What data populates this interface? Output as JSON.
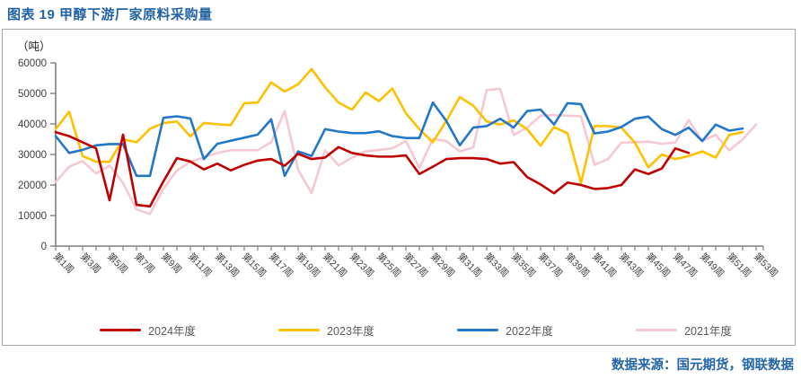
{
  "header": {
    "title": "图表 19 甲醇下游厂家原料采购量"
  },
  "footer": {
    "source": "数据来源：国元期货，钢联数据"
  },
  "colors": {
    "title_blue": "#2262A6",
    "source_blue": "#2464A8",
    "frame_border": "#A6A6A6",
    "axis_gray": "#808080",
    "tick_text": "#3F3F3F",
    "legend_text": "#595959"
  },
  "chart_data": {
    "type": "line",
    "title": "图表 19 甲醇下游厂家原料采购量",
    "unit_label": "（吨）",
    "xlabel": "",
    "ylabel": "吨",
    "weeks_total": 53,
    "y_axis": {
      "min": 0,
      "max": 60000,
      "step": 10000,
      "ticks": [
        0,
        10000,
        20000,
        30000,
        40000,
        50000,
        60000
      ]
    },
    "grid": false,
    "legend_position": "bottom",
    "x_tick_labels": [
      "第1周",
      "第3周",
      "第5周",
      "第7周",
      "第9周",
      "第11周",
      "第13周",
      "第15周",
      "第17周",
      "第19周",
      "第21周",
      "第23周",
      "第25周",
      "第27周",
      "第29周",
      "第31周",
      "第33周",
      "第35周",
      "第37周",
      "第39周",
      "第41周",
      "第43周",
      "第45周",
      "第47周",
      "第49周",
      "第51周",
      "第53周"
    ],
    "series": [
      {
        "name": "2024年度",
        "color": "#C00000",
        "values": [
          37300,
          36000,
          34000,
          32000,
          15000,
          36500,
          13500,
          13000,
          21200,
          28800,
          27700,
          25100,
          27000,
          24800,
          26600,
          28000,
          28500,
          26300,
          30200,
          28500,
          29000,
          32400,
          30500,
          29700,
          29300,
          29300,
          29700,
          23600,
          26000,
          28500,
          28800,
          28800,
          28500,
          27000,
          27500,
          22600,
          20200,
          17300,
          20800,
          20000,
          18700,
          19000,
          20000,
          25100,
          23600,
          25400,
          32000,
          30500,
          null,
          null,
          null,
          null,
          null
        ]
      },
      {
        "name": "2023年度",
        "color": "#FFC000",
        "values": [
          38300,
          44000,
          29500,
          27600,
          27600,
          35000,
          34000,
          38400,
          40300,
          40800,
          35900,
          40300,
          39900,
          39600,
          46800,
          47000,
          53600,
          50600,
          53000,
          58000,
          52000,
          47000,
          44700,
          50300,
          47500,
          51600,
          43500,
          38300,
          34000,
          41000,
          48800,
          46000,
          40800,
          39800,
          41200,
          38300,
          32900,
          39000,
          36900,
          20700,
          39300,
          39300,
          38800,
          33900,
          25800,
          30000,
          28500,
          29500,
          31000,
          29000,
          36400,
          37300,
          null
        ]
      },
      {
        "name": "2022年度",
        "color": "#2277C8",
        "values": [
          36000,
          30500,
          31500,
          33000,
          33400,
          33400,
          23000,
          23000,
          42000,
          42500,
          41800,
          28500,
          33500,
          34500,
          35500,
          36500,
          41500,
          23000,
          31000,
          29500,
          38300,
          37500,
          37000,
          37000,
          37600,
          36000,
          35400,
          35400,
          47000,
          41000,
          33000,
          38800,
          39300,
          41700,
          38800,
          44200,
          44700,
          39800,
          46800,
          46500,
          36900,
          37500,
          39000,
          41700,
          42400,
          38300,
          36400,
          38800,
          34400,
          39800,
          37800,
          38500,
          null
        ]
      },
      {
        "name": "2021年度",
        "color": "#F6C9D2",
        "values": [
          21000,
          26000,
          27800,
          23800,
          26400,
          20700,
          12000,
          10500,
          18700,
          24800,
          27600,
          29000,
          30500,
          31400,
          31400,
          31400,
          34000,
          44200,
          25000,
          17300,
          31400,
          26400,
          29000,
          31000,
          31500,
          32000,
          34400,
          25600,
          35100,
          34400,
          31000,
          32300,
          51100,
          51500,
          36400,
          38800,
          42700,
          42900,
          42700,
          42500,
          26600,
          28500,
          33900,
          34000,
          34200,
          33500,
          33900,
          41300,
          34400,
          36400,
          31400,
          34900,
          39800
        ]
      }
    ]
  }
}
